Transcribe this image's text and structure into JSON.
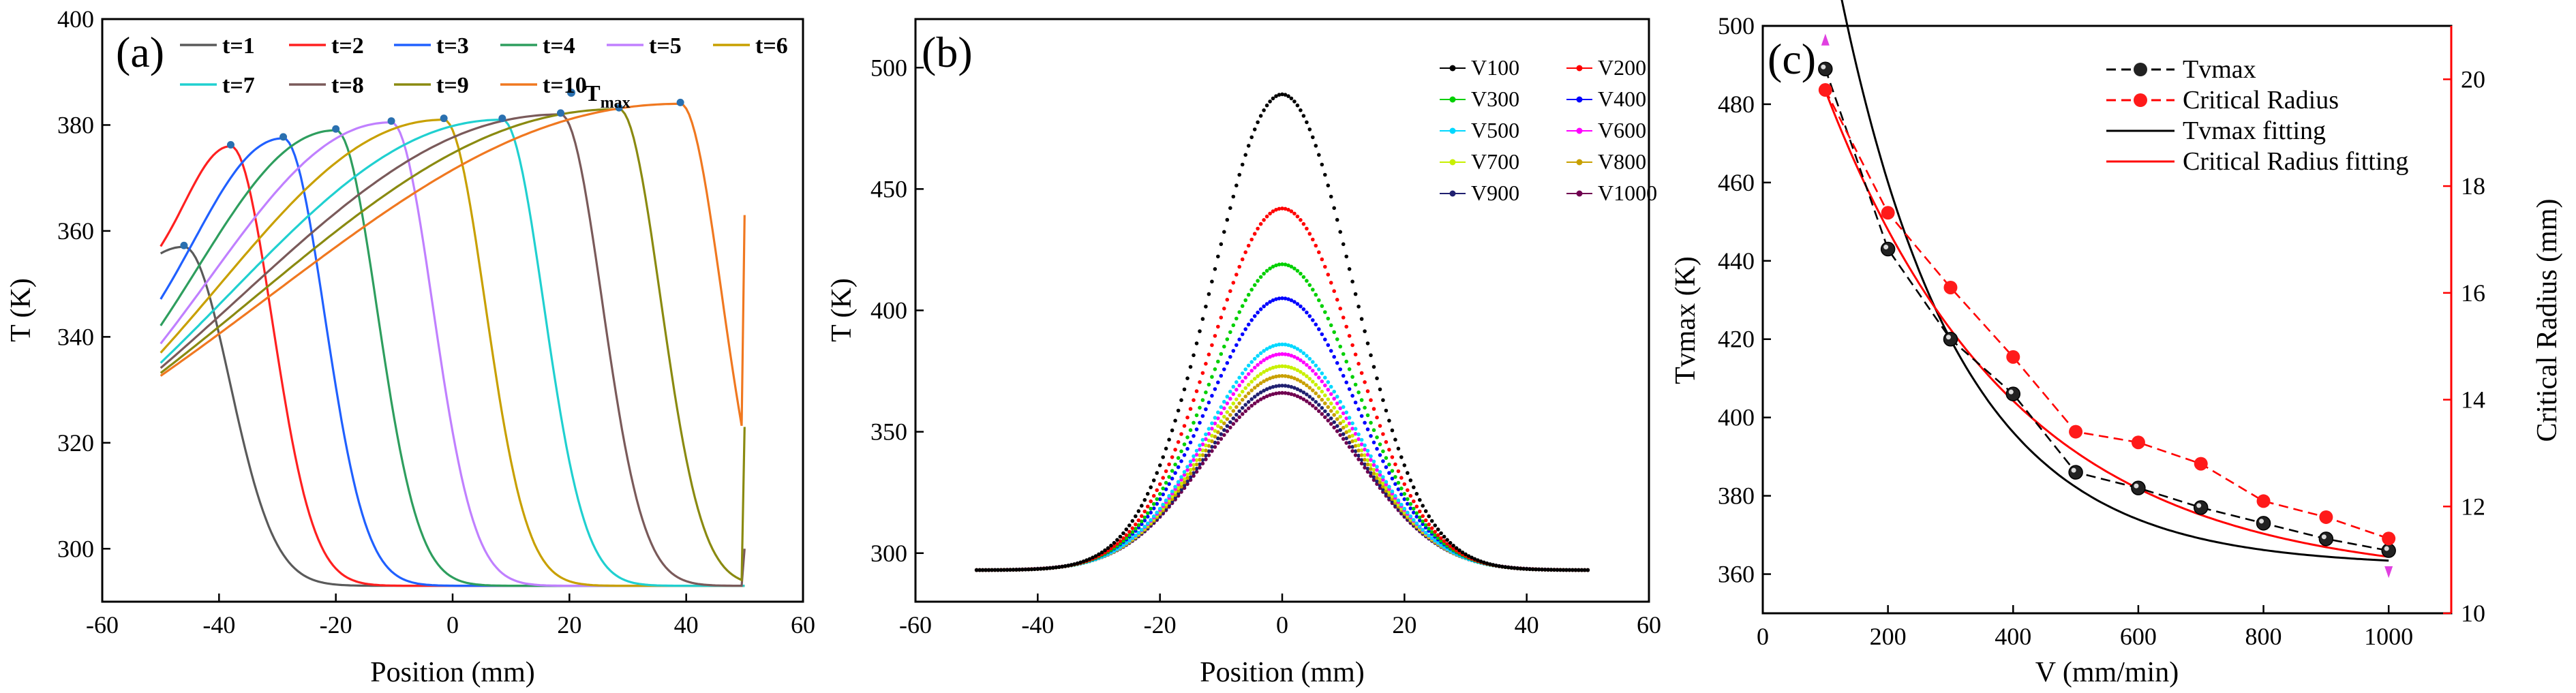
{
  "chart_data": [
    {
      "panel": "(a)",
      "type": "line",
      "xlabel": "Position (mm)",
      "ylabel": "T (K)",
      "xlim": [
        -60,
        60
      ],
      "ylim": [
        290,
        400
      ],
      "xticks": [
        -60,
        -40,
        -20,
        0,
        20,
        40,
        60
      ],
      "yticks": [
        300,
        320,
        340,
        360,
        380,
        400
      ],
      "baseline": 293,
      "series": [
        {
          "name": "t=1",
          "color": "#5a5a5a",
          "peak_x": -46,
          "peak_y": 357,
          "left_y": 354,
          "right_y": 293,
          "w_left": 6,
          "w_right": 11
        },
        {
          "name": "t=2",
          "color": "#ff2020",
          "peak_x": -38,
          "peak_y": 376,
          "left_y": 353,
          "right_y": 293,
          "w_left": 10,
          "w_right": 10
        },
        {
          "name": "t=3",
          "color": "#2060ff",
          "peak_x": -29,
          "peak_y": 377.5,
          "left_y": 338,
          "right_y": 293,
          "w_left": 19,
          "w_right": 10
        },
        {
          "name": "t=4",
          "color": "#2e9e5e",
          "peak_x": -20,
          "peak_y": 379,
          "left_y": 328,
          "right_y": 293,
          "w_left": 29,
          "w_right": 10
        },
        {
          "name": "t=5",
          "color": "#c080ff",
          "peak_x": -10.5,
          "peak_y": 380.5,
          "left_y": 323,
          "right_y": 293,
          "w_left": 38,
          "w_right": 10
        },
        {
          "name": "t=6",
          "color": "#c8a000",
          "peak_x": -1.5,
          "peak_y": 381,
          "left_y": 320,
          "right_y": 293,
          "w_left": 47,
          "w_right": 10
        },
        {
          "name": "t=7",
          "color": "#20d0d0",
          "peak_x": 8.5,
          "peak_y": 381,
          "left_y": 317,
          "right_y": 294,
          "w_left": 57,
          "w_right": 10
        },
        {
          "name": "t=8",
          "color": "#7a5a5a",
          "peak_x": 18.5,
          "peak_y": 382,
          "left_y": 315,
          "right_y": 300,
          "w_left": 67,
          "w_right": 10
        },
        {
          "name": "t=9",
          "color": "#8a8a10",
          "peak_x": 28.5,
          "peak_y": 383,
          "left_y": 314,
          "right_y": 323,
          "w_left": 76,
          "w_right": 10
        },
        {
          "name": "t=10",
          "color": "#f07820",
          "peak_x": 39,
          "peak_y": 384,
          "left_y": 313,
          "right_y": 363,
          "w_left": 86,
          "w_right": 10
        }
      ],
      "tmax_label": "T",
      "tmax_sub": "max",
      "tmax_color": "#2a70b0"
    },
    {
      "panel": "(b)",
      "type": "scatter",
      "xlabel": "Position (mm)",
      "ylabel": "T (K)",
      "xlim": [
        -60,
        60
      ],
      "ylim": [
        280,
        520
      ],
      "xticks": [
        -60,
        -40,
        -20,
        0,
        20,
        40,
        60
      ],
      "yticks": [
        300,
        350,
        400,
        450,
        500
      ],
      "baseline": 293,
      "series": [
        {
          "name": "V100",
          "color": "#000000",
          "peak": 489,
          "sigma": 11.5
        },
        {
          "name": "V200",
          "color": "#ff0000",
          "peak": 442,
          "sigma": 11.8
        },
        {
          "name": "V300",
          "color": "#00d000",
          "peak": 419,
          "sigma": 12.0
        },
        {
          "name": "V400",
          "color": "#0000ff",
          "peak": 405,
          "sigma": 12.2
        },
        {
          "name": "V500",
          "color": "#00d8ff",
          "peak": 386,
          "sigma": 12.4
        },
        {
          "name": "V600",
          "color": "#ff00ff",
          "peak": 382,
          "sigma": 12.5
        },
        {
          "name": "V700",
          "color": "#c8f000",
          "peak": 377,
          "sigma": 12.6
        },
        {
          "name": "V800",
          "color": "#c8a000",
          "peak": 373,
          "sigma": 12.7
        },
        {
          "name": "V900",
          "color": "#202070",
          "peak": 369,
          "sigma": 12.8
        },
        {
          "name": "V1000",
          "color": "#700050",
          "peak": 366,
          "sigma": 12.9
        }
      ]
    },
    {
      "panel": "(c)",
      "type": "line",
      "xlabel": "V (mm/min)",
      "ylabel": "Tvmax (K)",
      "ylabel_right": "Critical Radius (mm)",
      "xlim": [
        0,
        1100
      ],
      "ylim": [
        350,
        500
      ],
      "ylim_right": [
        10,
        21
      ],
      "xticks": [
        0,
        200,
        400,
        600,
        800,
        1000
      ],
      "yticks": [
        360,
        380,
        400,
        420,
        440,
        460,
        480,
        500
      ],
      "yticks_right": [
        10,
        12,
        14,
        16,
        18,
        20
      ],
      "x": [
        100,
        200,
        300,
        400,
        500,
        600,
        700,
        800,
        900,
        1000
      ],
      "series": [
        {
          "name": "Tvmax",
          "color": "#000000",
          "axis": "left",
          "values": [
            489,
            443,
            420,
            406,
            386,
            382,
            377,
            373,
            369,
            366
          ]
        },
        {
          "name": "Critical Radius",
          "color": "#ff0000",
          "axis": "right",
          "values": [
            19.8,
            17.5,
            16.1,
            14.8,
            13.4,
            13.2,
            12.8,
            12.1,
            11.8,
            11.4
          ]
        },
        {
          "name": "Tvmax fitting",
          "color": "#000000",
          "axis": "left"
        },
        {
          "name": "Critical Radius fitting",
          "color": "#ff0000",
          "axis": "right"
        }
      ]
    }
  ]
}
